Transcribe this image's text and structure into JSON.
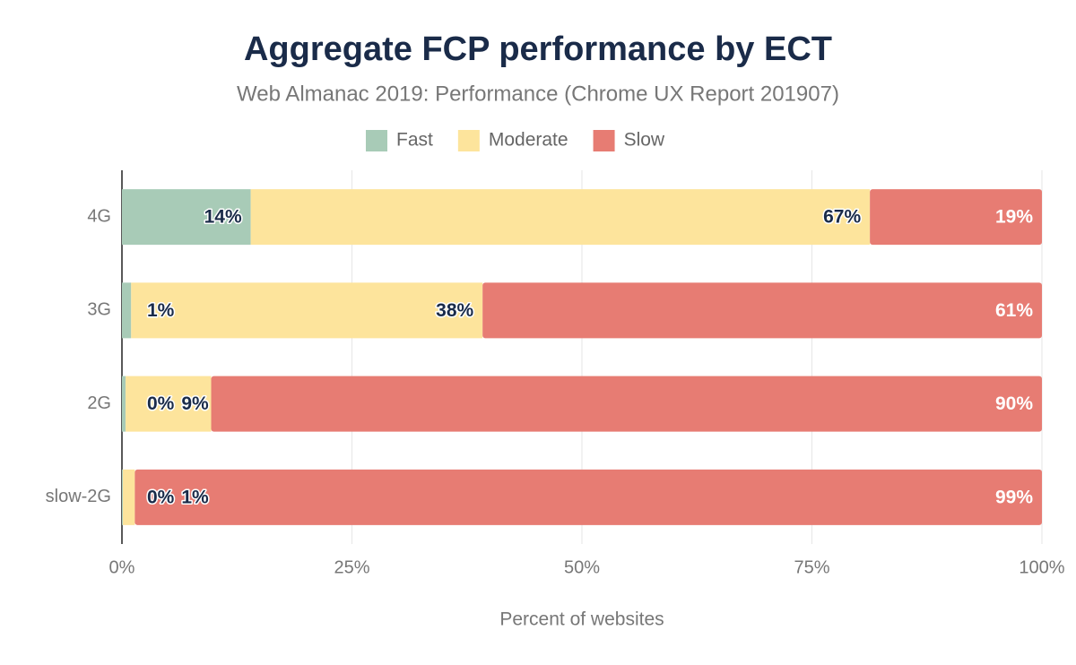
{
  "chart_data": {
    "type": "stacked-bar-horizontal",
    "title": "Aggregate FCP performance by ECT",
    "subtitle": "Web Almanac 2019: Performance (Chrome UX Report 201907)",
    "x_label": "Percent of websites",
    "categories": [
      "4G",
      "3G",
      "2G",
      "slow-2G"
    ],
    "series": [
      {
        "name": "Fast",
        "color": "#a8cbb7",
        "values": [
          14.0,
          1.0,
          0.4,
          0.1
        ],
        "value_labels": [
          "14%",
          "1%",
          "0%",
          "0%"
        ]
      },
      {
        "name": "Moderate",
        "color": "#fde49c",
        "values": [
          67.3,
          38.2,
          9.3,
          1.3
        ],
        "value_labels": [
          "67%",
          "38%",
          "9%",
          "1%"
        ]
      },
      {
        "name": "Slow",
        "color": "#e77c73",
        "values": [
          18.7,
          60.8,
          90.3,
          98.6
        ],
        "value_labels": [
          "19%",
          "61%",
          "90%",
          "99%"
        ]
      }
    ],
    "xlim": [
      0,
      100
    ],
    "xticks": [
      {
        "value": 0,
        "label": "0%"
      },
      {
        "value": 25,
        "label": "25%"
      },
      {
        "value": 50,
        "label": "50%"
      },
      {
        "value": 75,
        "label": "75%"
      },
      {
        "value": 100,
        "label": "100%"
      }
    ],
    "grid": true,
    "legend": "top"
  }
}
